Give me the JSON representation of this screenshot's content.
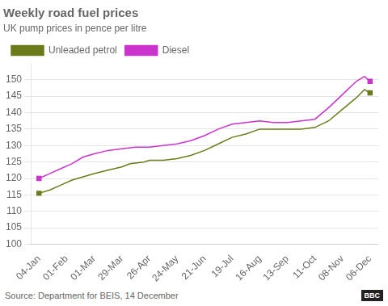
{
  "chart_data": {
    "type": "line",
    "title": "Weekly road fuel prices",
    "subtitle": "UK pump prices in pence per litre",
    "annotations": [
      "Source: Department for BEIS, 14 December",
      "BBC"
    ],
    "xlim": [
      -0.3,
      12.3
    ],
    "xticks": [
      {
        "value": 0,
        "label": "04-Jan"
      },
      {
        "value": 1,
        "label": "01-Feb"
      },
      {
        "value": 2,
        "label": "01-Mar"
      },
      {
        "value": 3,
        "label": "29-Mar"
      },
      {
        "value": 4,
        "label": "26-Apr"
      },
      {
        "value": 5,
        "label": "24-May"
      },
      {
        "value": 6,
        "label": "21-Jun"
      },
      {
        "value": 7,
        "label": "19-Jul"
      },
      {
        "value": 8,
        "label": "16-Aug"
      },
      {
        "value": 9,
        "label": "13-Sep"
      },
      {
        "value": 10,
        "label": "11-Oct"
      },
      {
        "value": 11,
        "label": "08-Nov"
      },
      {
        "value": 12,
        "label": "06-Dec"
      }
    ],
    "ylim": [
      100,
      155
    ],
    "yticks": [
      100,
      105,
      110,
      115,
      120,
      125,
      130,
      135,
      140,
      145,
      150
    ],
    "grid": "y",
    "legend": "top left",
    "series": [
      {
        "name": "Unleaded petrol",
        "color": "#6b7a1a",
        "marker": "square",
        "x": [
          0,
          0.4,
          0.8,
          1.2,
          1.6,
          2.0,
          2.5,
          3.0,
          3.3,
          3.8,
          4.0,
          4.5,
          5.0,
          5.5,
          6.0,
          6.5,
          7.0,
          7.5,
          8.0,
          8.5,
          9.0,
          9.5,
          10.0,
          10.5,
          11.0,
          11.5,
          11.8,
          12.0
        ],
        "values": [
          115.5,
          116.5,
          118.0,
          119.5,
          120.5,
          121.5,
          122.5,
          123.5,
          124.5,
          125.0,
          125.5,
          125.5,
          126.0,
          127.0,
          128.5,
          130.5,
          132.5,
          133.5,
          135.0,
          135.0,
          135.0,
          135.0,
          135.5,
          137.5,
          141.0,
          144.5,
          147.0,
          146.0
        ]
      },
      {
        "name": "Diesel",
        "color": "#cc33cc",
        "marker": "square",
        "x": [
          0,
          0.4,
          0.8,
          1.2,
          1.6,
          2.0,
          2.5,
          3.0,
          3.5,
          4.0,
          4.5,
          5.0,
          5.5,
          6.0,
          6.5,
          7.0,
          7.5,
          8.0,
          8.5,
          9.0,
          9.5,
          10.0,
          10.5,
          11.0,
          11.5,
          11.8,
          12.0
        ],
        "values": [
          120.0,
          121.5,
          123.0,
          124.5,
          126.5,
          127.5,
          128.5,
          129.0,
          129.5,
          129.5,
          130.0,
          130.5,
          131.5,
          133.0,
          135.0,
          136.5,
          137.0,
          137.5,
          137.0,
          137.0,
          137.5,
          138.0,
          141.5,
          145.5,
          149.5,
          151.0,
          149.5
        ]
      }
    ]
  }
}
